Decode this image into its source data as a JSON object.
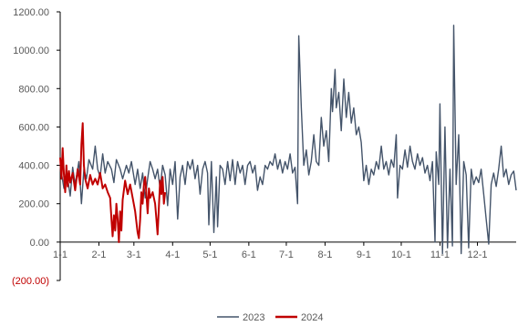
{
  "chart_data": {
    "type": "line",
    "title": "",
    "xlabel": "",
    "ylabel": "",
    "ylim": [
      -200,
      1200
    ],
    "y_ticks": [
      1200,
      1000,
      800,
      600,
      400,
      200,
      0,
      -200
    ],
    "y_tick_labels": [
      "1200.00",
      "1000.00",
      "800.00",
      "600.00",
      "400.00",
      "200.00",
      "0.00",
      "(200.00)"
    ],
    "x_tick_labels": [
      "1-1",
      "2-1",
      "3-1",
      "4-1",
      "5-1",
      "6-1",
      "7-1",
      "8-1",
      "9-1",
      "10-1",
      "11-1",
      "12-1"
    ],
    "x_tick_days": [
      0,
      31,
      59,
      90,
      120,
      151,
      181,
      212,
      243,
      273,
      304,
      334
    ],
    "grid": false,
    "legend": "bottom",
    "colors": {
      "2023": "#44546a",
      "2024": "#c00000",
      "axis": "#000000",
      "negative_label": "#c00000"
    },
    "series": [
      {
        "name": "2023",
        "points": [
          [
            0,
            400
          ],
          [
            3,
            280
          ],
          [
            5,
            380
          ],
          [
            8,
            240
          ],
          [
            10,
            390
          ],
          [
            12,
            300
          ],
          [
            15,
            420
          ],
          [
            17,
            200
          ],
          [
            19,
            380
          ],
          [
            21,
            330
          ],
          [
            23,
            430
          ],
          [
            26,
            380
          ],
          [
            28,
            500
          ],
          [
            30,
            380
          ],
          [
            32,
            340
          ],
          [
            34,
            460
          ],
          [
            36,
            360
          ],
          [
            38,
            420
          ],
          [
            41,
            380
          ],
          [
            43,
            310
          ],
          [
            45,
            430
          ],
          [
            48,
            380
          ],
          [
            50,
            330
          ],
          [
            53,
            400
          ],
          [
            55,
            360
          ],
          [
            57,
            420
          ],
          [
            60,
            300
          ],
          [
            62,
            380
          ],
          [
            64,
            280
          ],
          [
            66,
            360
          ],
          [
            68,
            230
          ],
          [
            70,
            330
          ],
          [
            72,
            420
          ],
          [
            74,
            380
          ],
          [
            76,
            330
          ],
          [
            78,
            380
          ],
          [
            80,
            280
          ],
          [
            82,
            400
          ],
          [
            84,
            350
          ],
          [
            86,
            190
          ],
          [
            88,
            380
          ],
          [
            90,
            300
          ],
          [
            92,
            420
          ],
          [
            94,
            120
          ],
          [
            96,
            340
          ],
          [
            98,
            400
          ],
          [
            100,
            300
          ],
          [
            102,
            420
          ],
          [
            104,
            380
          ],
          [
            106,
            430
          ],
          [
            108,
            330
          ],
          [
            110,
            400
          ],
          [
            112,
            250
          ],
          [
            114,
            380
          ],
          [
            116,
            420
          ],
          [
            118,
            360
          ],
          [
            119,
            90
          ],
          [
            121,
            420
          ],
          [
            123,
            50
          ],
          [
            125,
            340
          ],
          [
            126,
            80
          ],
          [
            128,
            400
          ],
          [
            130,
            380
          ],
          [
            132,
            300
          ],
          [
            134,
            420
          ],
          [
            136,
            320
          ],
          [
            138,
            430
          ],
          [
            140,
            300
          ],
          [
            142,
            420
          ],
          [
            144,
            360
          ],
          [
            146,
            400
          ],
          [
            148,
            300
          ],
          [
            150,
            400
          ],
          [
            152,
            420
          ],
          [
            154,
            360
          ],
          [
            156,
            400
          ],
          [
            158,
            270
          ],
          [
            160,
            340
          ],
          [
            162,
            300
          ],
          [
            164,
            400
          ],
          [
            166,
            380
          ],
          [
            168,
            420
          ],
          [
            170,
            400
          ],
          [
            172,
            460
          ],
          [
            174,
            380
          ],
          [
            176,
            430
          ],
          [
            178,
            360
          ],
          [
            180,
            420
          ],
          [
            182,
            380
          ],
          [
            184,
            460
          ],
          [
            186,
            360
          ],
          [
            188,
            390
          ],
          [
            190,
            200
          ],
          [
            191,
            1075
          ],
          [
            193,
            700
          ],
          [
            195,
            400
          ],
          [
            197,
            480
          ],
          [
            199,
            350
          ],
          [
            201,
            420
          ],
          [
            203,
            560
          ],
          [
            205,
            420
          ],
          [
            207,
            400
          ],
          [
            209,
            650
          ],
          [
            211,
            500
          ],
          [
            213,
            580
          ],
          [
            215,
            420
          ],
          [
            217,
            800
          ],
          [
            218,
            680
          ],
          [
            220,
            900
          ],
          [
            221,
            700
          ],
          [
            223,
            780
          ],
          [
            225,
            580
          ],
          [
            227,
            850
          ],
          [
            229,
            650
          ],
          [
            231,
            780
          ],
          [
            233,
            620
          ],
          [
            235,
            700
          ],
          [
            237,
            560
          ],
          [
            239,
            600
          ],
          [
            241,
            520
          ],
          [
            243,
            320
          ],
          [
            245,
            400
          ],
          [
            247,
            300
          ],
          [
            249,
            380
          ],
          [
            251,
            350
          ],
          [
            253,
            420
          ],
          [
            255,
            380
          ],
          [
            257,
            500
          ],
          [
            259,
            380
          ],
          [
            261,
            420
          ],
          [
            263,
            350
          ],
          [
            265,
            430
          ],
          [
            267,
            390
          ],
          [
            269,
            560
          ],
          [
            270,
            230
          ],
          [
            272,
            400
          ],
          [
            274,
            380
          ],
          [
            276,
            480
          ],
          [
            278,
            390
          ],
          [
            280,
            500
          ],
          [
            282,
            420
          ],
          [
            284,
            380
          ],
          [
            286,
            460
          ],
          [
            288,
            400
          ],
          [
            290,
            440
          ],
          [
            292,
            360
          ],
          [
            294,
            400
          ],
          [
            296,
            320
          ],
          [
            298,
            420
          ],
          [
            300,
            0
          ],
          [
            301,
            470
          ],
          [
            303,
            300
          ],
          [
            304,
            720
          ],
          [
            306,
            -60
          ],
          [
            308,
            600
          ],
          [
            310,
            -30
          ],
          [
            312,
            380
          ],
          [
            314,
            -20
          ],
          [
            315,
            1130
          ],
          [
            317,
            300
          ],
          [
            319,
            560
          ],
          [
            321,
            -60
          ],
          [
            323,
            420
          ],
          [
            325,
            350
          ],
          [
            327,
            -30
          ],
          [
            329,
            380
          ],
          [
            331,
            300
          ],
          [
            333,
            340
          ],
          [
            335,
            310
          ],
          [
            337,
            380
          ],
          [
            339,
            250
          ],
          [
            341,
            120
          ],
          [
            343,
            -10
          ],
          [
            345,
            300
          ],
          [
            347,
            360
          ],
          [
            349,
            290
          ],
          [
            351,
            380
          ],
          [
            353,
            500
          ],
          [
            355,
            340
          ],
          [
            357,
            380
          ],
          [
            359,
            300
          ],
          [
            361,
            350
          ],
          [
            363,
            370
          ],
          [
            365,
            270
          ]
        ]
      },
      {
        "name": "2024",
        "points": [
          [
            0,
            440
          ],
          [
            1,
            330
          ],
          [
            2,
            490
          ],
          [
            3,
            350
          ],
          [
            4,
            260
          ],
          [
            5,
            400
          ],
          [
            6,
            290
          ],
          [
            7,
            370
          ],
          [
            8,
            310
          ],
          [
            10,
            360
          ],
          [
            12,
            270
          ],
          [
            14,
            380
          ],
          [
            16,
            300
          ],
          [
            17,
            510
          ],
          [
            18,
            620
          ],
          [
            19,
            400
          ],
          [
            20,
            330
          ],
          [
            22,
            280
          ],
          [
            24,
            350
          ],
          [
            26,
            300
          ],
          [
            28,
            330
          ],
          [
            30,
            300
          ],
          [
            32,
            360
          ],
          [
            34,
            280
          ],
          [
            36,
            300
          ],
          [
            38,
            260
          ],
          [
            40,
            230
          ],
          [
            41,
            120
          ],
          [
            42,
            30
          ],
          [
            43,
            140
          ],
          [
            44,
            60
          ],
          [
            45,
            200
          ],
          [
            46,
            120
          ],
          [
            47,
            0
          ],
          [
            48,
            160
          ],
          [
            49,
            60
          ],
          [
            50,
            220
          ],
          [
            52,
            320
          ],
          [
            54,
            250
          ],
          [
            56,
            300
          ],
          [
            58,
            230
          ],
          [
            60,
            160
          ],
          [
            62,
            50
          ],
          [
            63,
            20
          ],
          [
            64,
            120
          ],
          [
            65,
            260
          ],
          [
            66,
            200
          ],
          [
            67,
            300
          ],
          [
            68,
            340
          ],
          [
            69,
            250
          ],
          [
            70,
            150
          ],
          [
            71,
            280
          ],
          [
            72,
            230
          ],
          [
            74,
            260
          ],
          [
            76,
            200
          ],
          [
            77,
            120
          ],
          [
            78,
            40
          ],
          [
            79,
            180
          ],
          [
            80,
            320
          ],
          [
            81,
            250
          ],
          [
            82,
            340
          ],
          [
            83,
            200
          ],
          [
            84,
            260
          ]
        ]
      }
    ]
  }
}
